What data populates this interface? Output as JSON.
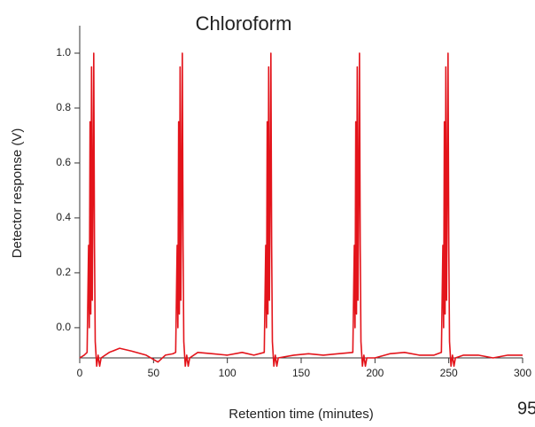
{
  "chart_data": {
    "type": "line",
    "title": "Chloroform",
    "x_label": "Retention time (minutes)",
    "y_label": "Detector response (V)",
    "annotation": "95",
    "color": "#e3141b",
    "x": [
      0,
      3,
      5,
      6,
      6.5,
      7,
      7.5,
      8,
      8.5,
      9,
      9.5,
      10,
      10.5,
      11.5,
      12.5,
      13.5,
      14.5,
      20,
      27,
      35,
      45,
      53,
      58,
      63,
      65,
      66,
      66.5,
      67,
      67.5,
      68,
      68.5,
      69,
      69.5,
      70,
      70.5,
      71.5,
      72.5,
      73.5,
      74.5,
      80,
      90,
      100,
      110,
      118,
      125,
      126,
      126.5,
      127,
      127.5,
      128,
      128.5,
      129,
      129.5,
      130,
      130.5,
      131.5,
      132.5,
      133.5,
      134.5,
      145,
      155,
      165,
      175,
      185,
      186,
      186.5,
      187,
      187.5,
      188,
      188.5,
      189,
      189.5,
      190,
      190.5,
      191.5,
      192.5,
      193.5,
      194.5,
      200,
      210,
      220,
      230,
      240,
      245,
      246,
      246.5,
      247,
      247.5,
      248,
      248.5,
      249,
      249.5,
      250,
      250.5,
      251.5,
      252.5,
      253.5,
      254.5,
      260,
      270,
      280,
      290,
      300
    ],
    "values": [
      -0.11,
      -0.1,
      -0.09,
      0.3,
      0.0,
      0.75,
      0.05,
      0.95,
      0.1,
      0.5,
      1.0,
      0.3,
      -0.05,
      -0.14,
      -0.1,
      -0.14,
      -0.11,
      -0.09,
      -0.075,
      -0.085,
      -0.1,
      -0.125,
      -0.1,
      -0.095,
      -0.09,
      0.3,
      0.0,
      0.75,
      0.05,
      0.95,
      0.1,
      0.5,
      1.0,
      0.3,
      -0.05,
      -0.14,
      -0.1,
      -0.14,
      -0.11,
      -0.09,
      -0.095,
      -0.1,
      -0.09,
      -0.1,
      -0.09,
      0.3,
      0.0,
      0.75,
      0.05,
      0.95,
      0.1,
      0.5,
      1.0,
      0.3,
      -0.05,
      -0.14,
      -0.1,
      -0.14,
      -0.11,
      -0.1,
      -0.095,
      -0.1,
      -0.095,
      -0.09,
      0.3,
      0.0,
      0.75,
      0.05,
      0.95,
      0.1,
      0.5,
      1.0,
      0.3,
      -0.05,
      -0.14,
      -0.1,
      -0.14,
      -0.11,
      -0.11,
      -0.095,
      -0.09,
      -0.1,
      -0.1,
      -0.09,
      0.3,
      0.0,
      0.75,
      0.05,
      0.95,
      0.1,
      0.5,
      1.0,
      0.3,
      -0.05,
      -0.14,
      -0.1,
      -0.14,
      -0.11,
      -0.1,
      -0.1,
      -0.11,
      -0.1,
      -0.1
    ],
    "xlim": [
      0,
      300
    ],
    "xticks": [
      0,
      50,
      100,
      150,
      200,
      250,
      300
    ],
    "ylim": [
      -0.11,
      1.1
    ],
    "yticks": [
      {
        "value": 0,
        "label": "0.0"
      },
      {
        "value": 0.2,
        "label": "0.2"
      },
      {
        "value": 0.4,
        "label": "0.4"
      },
      {
        "value": 0.6,
        "label": "0.6"
      },
      {
        "value": 0.8,
        "label": "0.8"
      },
      {
        "value": 1,
        "label": "1.0"
      }
    ]
  }
}
